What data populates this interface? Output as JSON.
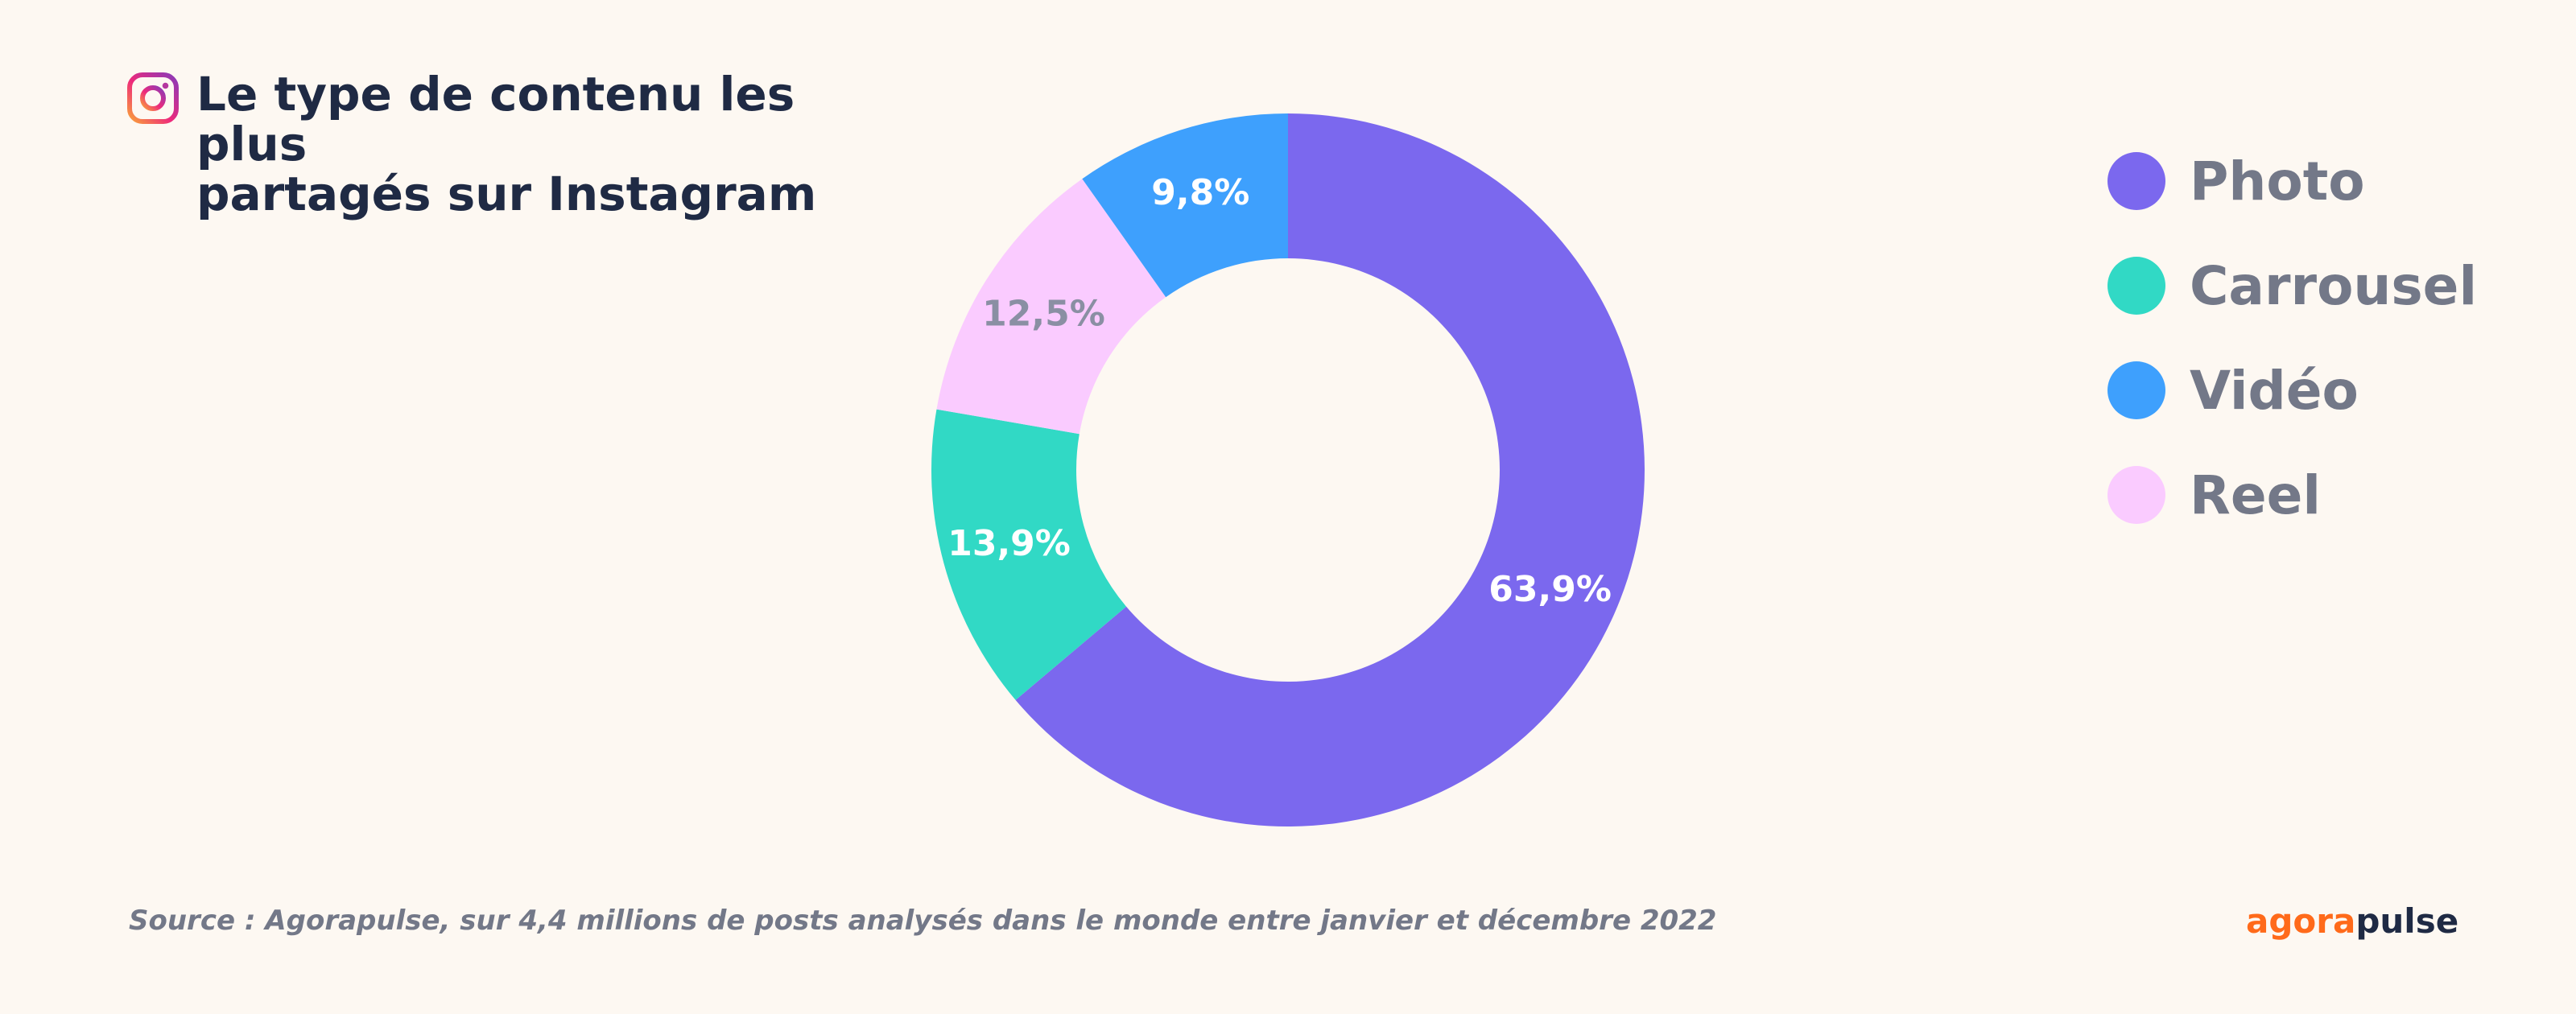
{
  "title": {
    "line1": "Le type de contenu les plus",
    "line2": "partagés sur Instagram"
  },
  "icon": "instagram-icon",
  "chart_data": {
    "type": "pie",
    "donut": true,
    "categories": [
      "Photo",
      "Carrousel",
      "Vidéo",
      "Reel"
    ],
    "values": [
      63.9,
      13.9,
      9.8,
      12.5
    ],
    "value_labels": [
      "63,9%",
      "13,9%",
      "9,8%",
      "12,5%"
    ],
    "colors": [
      "#7b68ee",
      "#31d9c5",
      "#3ea0fd",
      "#facbff"
    ],
    "label_colors": [
      "#ffffff",
      "#ffffff",
      "#ffffff",
      "#8a8fa3"
    ],
    "slice_order_clockwise_from_top": [
      "Photo",
      "Carrousel",
      "Reel",
      "Vidéo"
    ],
    "legend_position": "top-right"
  },
  "legend": [
    {
      "label": "Photo",
      "color": "#7b68ee"
    },
    {
      "label": "Carrousel",
      "color": "#31d9c5"
    },
    {
      "label": "Vidéo",
      "color": "#3ea0fd"
    },
    {
      "label": "Reel",
      "color": "#facbff"
    }
  ],
  "source": "Source : Agorapulse, sur 4,4 millions de posts analysés dans le monde entre janvier et décembre 2022",
  "brand": {
    "part1": "agora",
    "part2": "pulse"
  }
}
